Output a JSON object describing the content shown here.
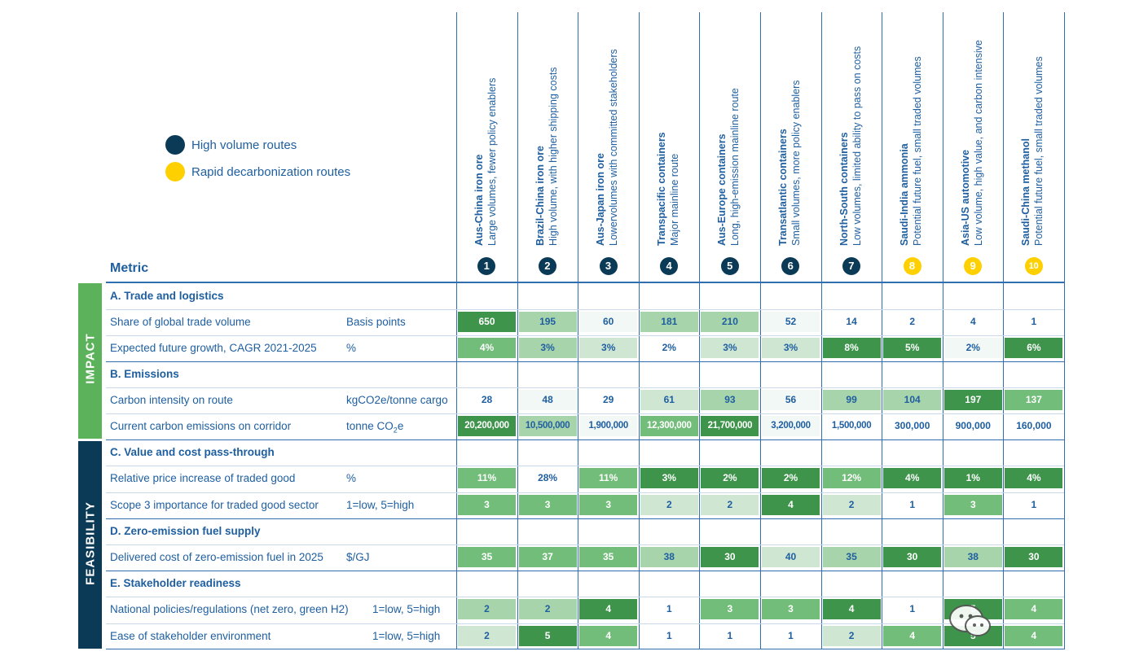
{
  "legend": {
    "items": [
      {
        "label": "High volume routes",
        "color": "#0b3a57"
      },
      {
        "label": "Rapid decarbonization routes",
        "color": "#ffd000"
      }
    ]
  },
  "metric_label": "Metric",
  "side_labels": {
    "impact": "IMPACT",
    "feasibility": "FEASIBILITY"
  },
  "columns": [
    {
      "num": "1",
      "title": "Aus-China iron ore",
      "subtitle": "Large volumes, fewer policy  enablers",
      "type": "high"
    },
    {
      "num": "2",
      "title": "Brazil-China iron ore",
      "subtitle": "High volume, with higher shipping costs",
      "type": "high"
    },
    {
      "num": "3",
      "title": "Aus-Japan iron ore",
      "subtitle": "Lowervolumes with committed stakeholders",
      "type": "high"
    },
    {
      "num": "4",
      "title": "Transpacific containers",
      "subtitle": "Major mainline route",
      "type": "high"
    },
    {
      "num": "5",
      "title": "Aus-Europe containers",
      "subtitle": "Long, high-emission mainline route",
      "type": "high"
    },
    {
      "num": "6",
      "title": "Transatlantic containers",
      "subtitle": "Small volumes, more policy enablers",
      "type": "high"
    },
    {
      "num": "7",
      "title": "North-South containers",
      "subtitle": "Low volumes, limited ability to pass on costs",
      "type": "high"
    },
    {
      "num": "8",
      "title": "Saudi-India ammonia",
      "subtitle": "Potential future fuel, small traded volumes",
      "type": "rapid"
    },
    {
      "num": "9",
      "title": "Asia-US automotive",
      "subtitle": "Low volume, high value, and carbon intensive",
      "type": "rapid"
    },
    {
      "num": "10",
      "title": "Saudi-China methanol",
      "subtitle": "Potential future fuel, small traded volumes",
      "type": "rapid"
    }
  ],
  "sections": [
    {
      "title": "A. Trade and logistics"
    },
    {
      "title": "B. Emissions"
    },
    {
      "title": "C. Value and cost pass-through"
    },
    {
      "title": "D. Zero-emission fuel supply"
    },
    {
      "title": "E. Stakeholder readiness"
    }
  ],
  "colors": {
    "navy": "#0b3a57",
    "yellow": "#ffd000",
    "impact_green": "#5cb25a",
    "feasibility_navy": "#0b3a57",
    "shade": [
      "#f2f8f6",
      "#cfe6d3",
      "#a8d4ac",
      "#72bd79",
      "#3e944b"
    ]
  },
  "chart_data": {
    "type": "table",
    "rows": [
      {
        "section": 0,
        "label": "Share of global trade volume",
        "unit": "Basis points",
        "values": [
          "650",
          "195",
          "60",
          "181",
          "210",
          "52",
          "14",
          "2",
          "4",
          "1"
        ],
        "shade": [
          4,
          2,
          0,
          2,
          2,
          0,
          -1,
          -1,
          -1,
          -1
        ]
      },
      {
        "section": 0,
        "label": "Expected future growth, CAGR 2021-2025",
        "unit": "%",
        "values": [
          "4%",
          "3%",
          "3%",
          "2%",
          "3%",
          "3%",
          "8%",
          "5%",
          "2%",
          "6%"
        ],
        "shade": [
          3,
          2,
          1,
          -1,
          1,
          1,
          4,
          4,
          0,
          4
        ]
      },
      {
        "section": 1,
        "label": "Carbon intensity on route",
        "unit": "kgCO2e/tonne cargo",
        "values": [
          "28",
          "48",
          "29",
          "61",
          "93",
          "56",
          "99",
          "104",
          "197",
          "137"
        ],
        "shade": [
          -1,
          0,
          -1,
          1,
          2,
          0,
          2,
          2,
          4,
          3
        ]
      },
      {
        "section": 1,
        "label": "Current carbon emissions on corridor",
        "unit": "tonne CO2e",
        "values": [
          "20,200,000",
          "10,500,000",
          "1,900,000",
          "12,300,000",
          "21,700,000",
          "3,200,000",
          "1,500,000",
          "300,000",
          "900,000",
          "160,000"
        ],
        "shade": [
          4,
          2,
          0,
          3,
          4,
          0,
          -1,
          -1,
          -1,
          -1
        ]
      },
      {
        "section": 2,
        "label": "Relative price increase of traded good",
        "unit": "%",
        "values": [
          "11%",
          "28%",
          "11%",
          "3%",
          "2%",
          "2%",
          "12%",
          "4%",
          "1%",
          "4%"
        ],
        "shade": [
          3,
          -1,
          3,
          4,
          4,
          4,
          3,
          4,
          4,
          4
        ]
      },
      {
        "section": 2,
        "label": "Scope 3 importance for traded good sector",
        "unit": "1=low, 5=high",
        "values": [
          "3",
          "3",
          "3",
          "2",
          "2",
          "4",
          "2",
          "1",
          "3",
          "1"
        ],
        "shade": [
          3,
          3,
          3,
          1,
          1,
          4,
          1,
          -1,
          3,
          -1
        ]
      },
      {
        "section": 3,
        "label": "Delivered cost of zero-emission fuel in 2025",
        "unit": "$/GJ",
        "values": [
          "35",
          "37",
          "35",
          "38",
          "30",
          "40",
          "35",
          "30",
          "38",
          "30"
        ],
        "shade": [
          3,
          3,
          3,
          2,
          4,
          1,
          2,
          4,
          2,
          4
        ]
      },
      {
        "section": 4,
        "label": "National policies/regulations (net zero, green H2)",
        "unit": "1=low, 5=high",
        "values": [
          "2",
          "2",
          "4",
          "1",
          "3",
          "3",
          "4",
          "1",
          "5",
          "4"
        ],
        "shade": [
          2,
          2,
          4,
          -1,
          3,
          3,
          4,
          -1,
          4,
          3
        ]
      },
      {
        "section": 4,
        "label": "Ease of stakeholder environment",
        "unit": "1=low, 5=high",
        "values": [
          "2",
          "5",
          "4",
          "1",
          "1",
          "1",
          "2",
          "4",
          "5",
          "4"
        ],
        "shade": [
          1,
          4,
          3,
          -1,
          -1,
          -1,
          1,
          3,
          4,
          3
        ]
      }
    ]
  }
}
